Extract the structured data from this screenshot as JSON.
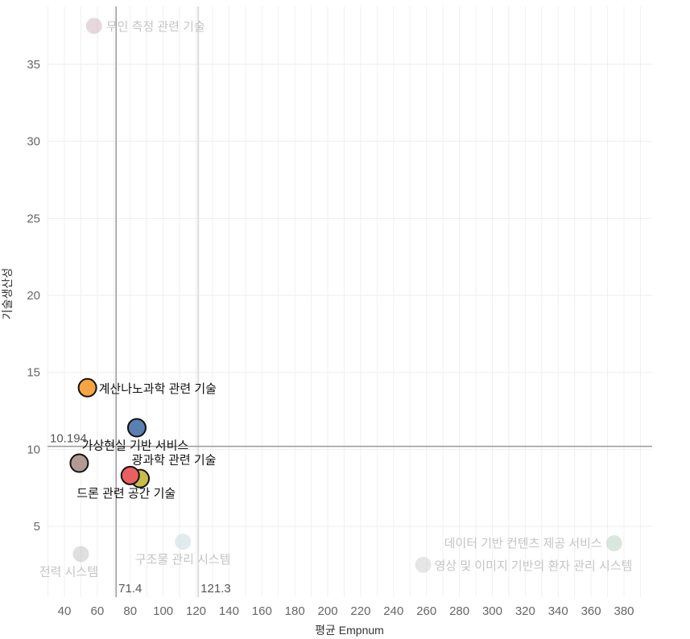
{
  "chart_data": {
    "type": "scatter",
    "xlabel": "평균 Empnum",
    "ylabel": "기술생산성",
    "xlim": [
      30,
      395
    ],
    "ylim": [
      0.5,
      38.5
    ],
    "xticks": [
      40,
      60,
      80,
      100,
      120,
      140,
      160,
      180,
      200,
      220,
      240,
      260,
      280,
      300,
      320,
      340,
      360,
      380
    ],
    "yticks": [
      5,
      10,
      15,
      20,
      25,
      30,
      35
    ],
    "grid": true,
    "reference_lines": [
      {
        "axis": "x",
        "value": 71.4,
        "label": "71.4",
        "faded": false
      },
      {
        "axis": "x",
        "value": 121.3,
        "label": "121.3",
        "faded": true
      },
      {
        "axis": "y",
        "value": 10.194,
        "label": "10.194",
        "faded": false
      }
    ],
    "points": [
      {
        "name": "무인 측정 관련 기술",
        "x": 58,
        "y": 37.5,
        "color": "#c8a9b4",
        "highlight": false
      },
      {
        "name": "계산나노과학 관련 기술",
        "x": 54,
        "y": 14.0,
        "color": "#f7a541",
        "highlight": true
      },
      {
        "name": "가상현실 기반 서비스",
        "x": 84,
        "y": 11.4,
        "color": "#5a80b2",
        "highlight": true
      },
      {
        "name": "광과학 관련 기술",
        "x": 86,
        "y": 8.1,
        "color": "#c8bd4a",
        "highlight": true
      },
      {
        "name": "드론 관련 공간 기술",
        "x": 80,
        "y": 8.3,
        "color": "#ea6061",
        "highlight": true
      },
      {
        "name": "",
        "x": 49,
        "y": 9.1,
        "color": "#b39a90",
        "highlight": true
      },
      {
        "name": "전력 시스템",
        "x": 50,
        "y": 3.2,
        "color": "#b8b8b8",
        "highlight": false
      },
      {
        "name": "구조물 관리 시스템",
        "x": 112,
        "y": 4.0,
        "color": "#bcd3dc",
        "highlight": false
      },
      {
        "name": "데이터 기반 컨텐츠 제공 서비스",
        "x": 374,
        "y": 3.9,
        "color": "#aecab7",
        "highlight": false
      },
      {
        "name": "영상 및 이미지 기반의 환자 관리 시스템",
        "x": 258,
        "y": 2.5,
        "color": "#c8c8c8",
        "highlight": false
      }
    ]
  }
}
